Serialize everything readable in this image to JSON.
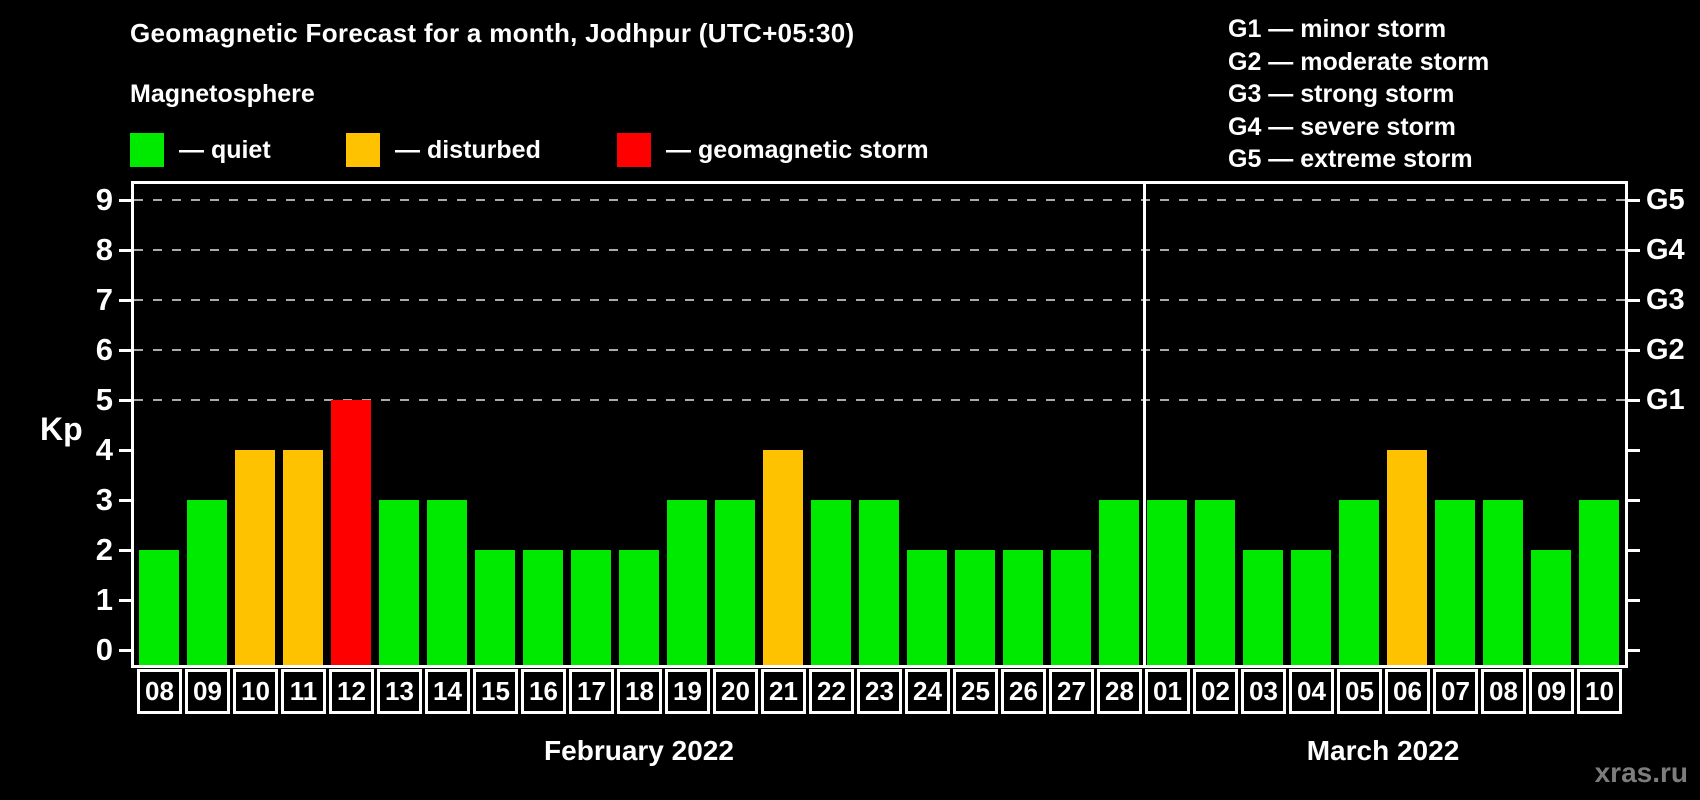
{
  "header": {
    "title": "Geomagnetic Forecast for a month, Jodhpur (UTC+05:30)",
    "subtitle": "Magnetosphere"
  },
  "legend": {
    "items": [
      {
        "key": "quiet",
        "label": "— quiet"
      },
      {
        "key": "disturbed",
        "label": "— disturbed"
      },
      {
        "key": "storm",
        "label": "— geomagnetic storm"
      }
    ]
  },
  "g_legend": {
    "lines": [
      "G1 — minor storm",
      "G2 — moderate storm",
      "G3 — strong storm",
      "G4 — severe storm",
      "G5 — extreme storm"
    ]
  },
  "colors": {
    "quiet": "#00ea00",
    "disturbed": "#ffc200",
    "storm": "#ff0000",
    "grid": "#aaaaaa",
    "axis": "#ffffff",
    "watermark": "#7d7d7d"
  },
  "watermark": "xras.ru",
  "chart_data": {
    "type": "bar",
    "title": "Geomagnetic Forecast for a month, Jodhpur (UTC+05:30)",
    "subtitle": "Magnetosphere",
    "ylabel": "Kp",
    "ylim": [
      0,
      9.4
    ],
    "yticks": [
      "0",
      "1",
      "2",
      "3",
      "4",
      "5",
      "6",
      "7",
      "8",
      "9"
    ],
    "gridline_kp": [
      5,
      6,
      7,
      8,
      9
    ],
    "grid": "dashed horizontal lines at G-storm levels only",
    "legend_position": "top-left",
    "right_axis": [
      {
        "kp": 5,
        "label": "G1"
      },
      {
        "kp": 6,
        "label": "G2"
      },
      {
        "kp": 7,
        "label": "G3"
      },
      {
        "kp": 8,
        "label": "G4"
      },
      {
        "kp": 9,
        "label": "G5"
      }
    ],
    "groups": [
      {
        "month": "February 2022",
        "bars": [
          {
            "day": "08",
            "kp": 2,
            "status": "quiet"
          },
          {
            "day": "09",
            "kp": 3,
            "status": "quiet"
          },
          {
            "day": "10",
            "kp": 4,
            "status": "disturbed"
          },
          {
            "day": "11",
            "kp": 4,
            "status": "disturbed"
          },
          {
            "day": "12",
            "kp": 5,
            "status": "storm"
          },
          {
            "day": "13",
            "kp": 3,
            "status": "quiet"
          },
          {
            "day": "14",
            "kp": 3,
            "status": "quiet"
          },
          {
            "day": "15",
            "kp": 2,
            "status": "quiet"
          },
          {
            "day": "16",
            "kp": 2,
            "status": "quiet"
          },
          {
            "day": "17",
            "kp": 2,
            "status": "quiet"
          },
          {
            "day": "18",
            "kp": 2,
            "status": "quiet"
          },
          {
            "day": "19",
            "kp": 3,
            "status": "quiet"
          },
          {
            "day": "20",
            "kp": 3,
            "status": "quiet"
          },
          {
            "day": "21",
            "kp": 4,
            "status": "disturbed"
          },
          {
            "day": "22",
            "kp": 3,
            "status": "quiet"
          },
          {
            "day": "23",
            "kp": 3,
            "status": "quiet"
          },
          {
            "day": "24",
            "kp": 2,
            "status": "quiet"
          },
          {
            "day": "25",
            "kp": 2,
            "status": "quiet"
          },
          {
            "day": "26",
            "kp": 2,
            "status": "quiet"
          },
          {
            "day": "27",
            "kp": 2,
            "status": "quiet"
          },
          {
            "day": "28",
            "kp": 3,
            "status": "quiet"
          }
        ]
      },
      {
        "month": "March 2022",
        "bars": [
          {
            "day": "01",
            "kp": 3,
            "status": "quiet"
          },
          {
            "day": "02",
            "kp": 3,
            "status": "quiet"
          },
          {
            "day": "03",
            "kp": 2,
            "status": "quiet"
          },
          {
            "day": "04",
            "kp": 2,
            "status": "quiet"
          },
          {
            "day": "05",
            "kp": 3,
            "status": "quiet"
          },
          {
            "day": "06",
            "kp": 4,
            "status": "disturbed"
          },
          {
            "day": "07",
            "kp": 3,
            "status": "quiet"
          },
          {
            "day": "08",
            "kp": 3,
            "status": "quiet"
          },
          {
            "day": "09",
            "kp": 2,
            "status": "quiet"
          },
          {
            "day": "10",
            "kp": 3,
            "status": "quiet"
          }
        ]
      }
    ]
  }
}
